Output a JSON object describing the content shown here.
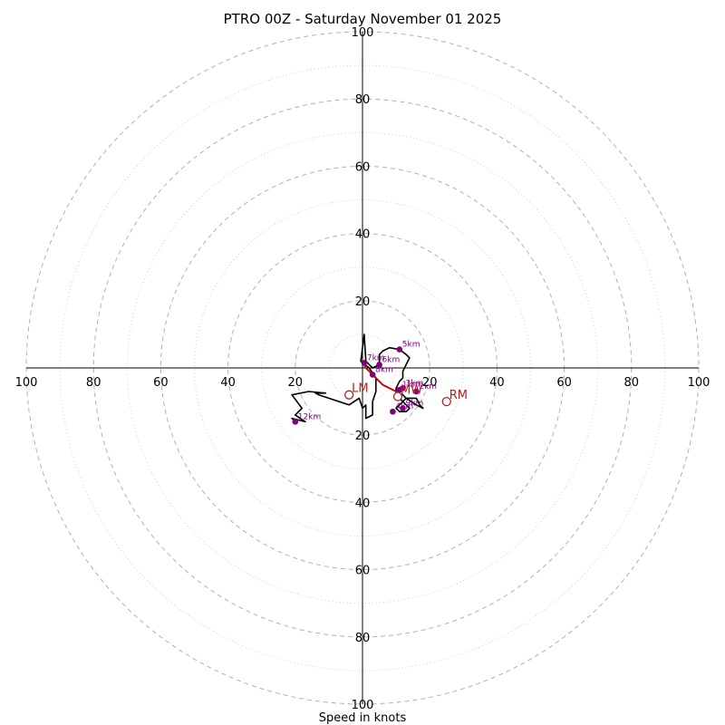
{
  "chart_data": {
    "type": "hodograph",
    "title": "PTRO 00Z - Saturday November 01 2025",
    "xlabel": "Speed in knots",
    "xlim": [
      -100,
      100
    ],
    "ylim": [
      -100,
      100
    ],
    "rings": {
      "major": [
        20,
        40,
        60,
        80,
        100
      ],
      "minor": [
        10,
        30,
        50,
        70,
        90
      ]
    },
    "tick_labels": {
      "top": [
        "20",
        "40",
        "60",
        "80",
        "100"
      ],
      "bottom": [
        "20",
        "40",
        "60",
        "80",
        "100"
      ],
      "left": [
        "20",
        "40",
        "60",
        "80",
        "100"
      ],
      "right": [
        "20",
        "40",
        "60",
        "80",
        "100"
      ]
    },
    "colors": {
      "hodo_line": "#000000",
      "low_level_line": "#cc0000",
      "level_marker": "#800080",
      "storm_motion": "#b22222",
      "grid_major": "#b0b0b0",
      "grid_minor": "#cccccc"
    },
    "hodograph_line": [
      [
        0.5,
        0.5
      ],
      [
        3,
        -2
      ],
      [
        6,
        -5
      ],
      [
        8,
        -6
      ],
      [
        10,
        -7
      ],
      [
        12,
        -8
      ],
      [
        13,
        -9
      ],
      [
        16,
        -9
      ],
      [
        17,
        -11
      ],
      [
        18,
        -12
      ],
      [
        16,
        -11
      ],
      [
        13,
        -9
      ],
      [
        10,
        -12
      ],
      [
        11,
        -13
      ],
      [
        13,
        -13
      ],
      [
        14,
        -12
      ],
      [
        13,
        -11
      ],
      [
        11,
        -9
      ],
      [
        10,
        -8
      ],
      [
        10,
        -6
      ],
      [
        11,
        -4
      ],
      [
        12,
        -3
      ],
      [
        12,
        -1
      ],
      [
        14,
        3
      ],
      [
        13,
        4
      ],
      [
        11,
        5.5
      ],
      [
        8,
        6
      ],
      [
        6,
        5
      ],
      [
        5,
        4
      ],
      [
        5,
        1
      ],
      [
        3,
        0
      ],
      [
        1,
        2
      ],
      [
        0.5,
        10
      ],
      [
        0,
        6
      ],
      [
        -0.5,
        2
      ],
      [
        2,
        0
      ],
      [
        4,
        -3
      ],
      [
        4,
        -7
      ],
      [
        3,
        -10
      ],
      [
        3,
        -14
      ],
      [
        1,
        -15
      ],
      [
        1,
        -11
      ],
      [
        0,
        -12
      ],
      [
        -1,
        -9
      ],
      [
        -4,
        -11
      ],
      [
        -13,
        -8
      ],
      [
        -14,
        -7.5
      ],
      [
        -11,
        -7.5
      ],
      [
        -16,
        -7
      ],
      [
        -21,
        -8
      ],
      [
        -18,
        -12
      ],
      [
        -20,
        -14
      ],
      [
        -17,
        -16
      ],
      [
        -21,
        -15
      ],
      [
        -20,
        -16
      ]
    ],
    "low_level_line": [
      [
        0.5,
        0.5
      ],
      [
        3,
        -2
      ],
      [
        6,
        -5
      ],
      [
        8,
        -6
      ],
      [
        10,
        -7
      ],
      [
        11,
        -8
      ]
    ],
    "levels": [
      {
        "label": "1km",
        "u": 11,
        "v": -6.5
      },
      {
        "label": "2km",
        "u": 16,
        "v": -7
      },
      {
        "label": "3km",
        "u": 12,
        "v": -6
      },
      {
        "label": "4km",
        "u": 9,
        "v": -13
      },
      {
        "label": "5km",
        "u": 11,
        "v": 5.5
      },
      {
        "label": "6km",
        "u": 5,
        "v": 1
      },
      {
        "label": "7km",
        "u": 0.5,
        "v": 1.5
      },
      {
        "label": "8km",
        "u": 3,
        "v": -2
      },
      {
        "label": "9km",
        "u": 12,
        "v": -12
      },
      {
        "label": "12km",
        "u": -20,
        "v": -16
      }
    ],
    "storm_motions": [
      {
        "label": "RM",
        "u": 25,
        "v": -10
      },
      {
        "label": "LM",
        "u": -4,
        "v": -8
      },
      {
        "label": "MW",
        "u": 10.5,
        "v": -8.5
      }
    ]
  }
}
